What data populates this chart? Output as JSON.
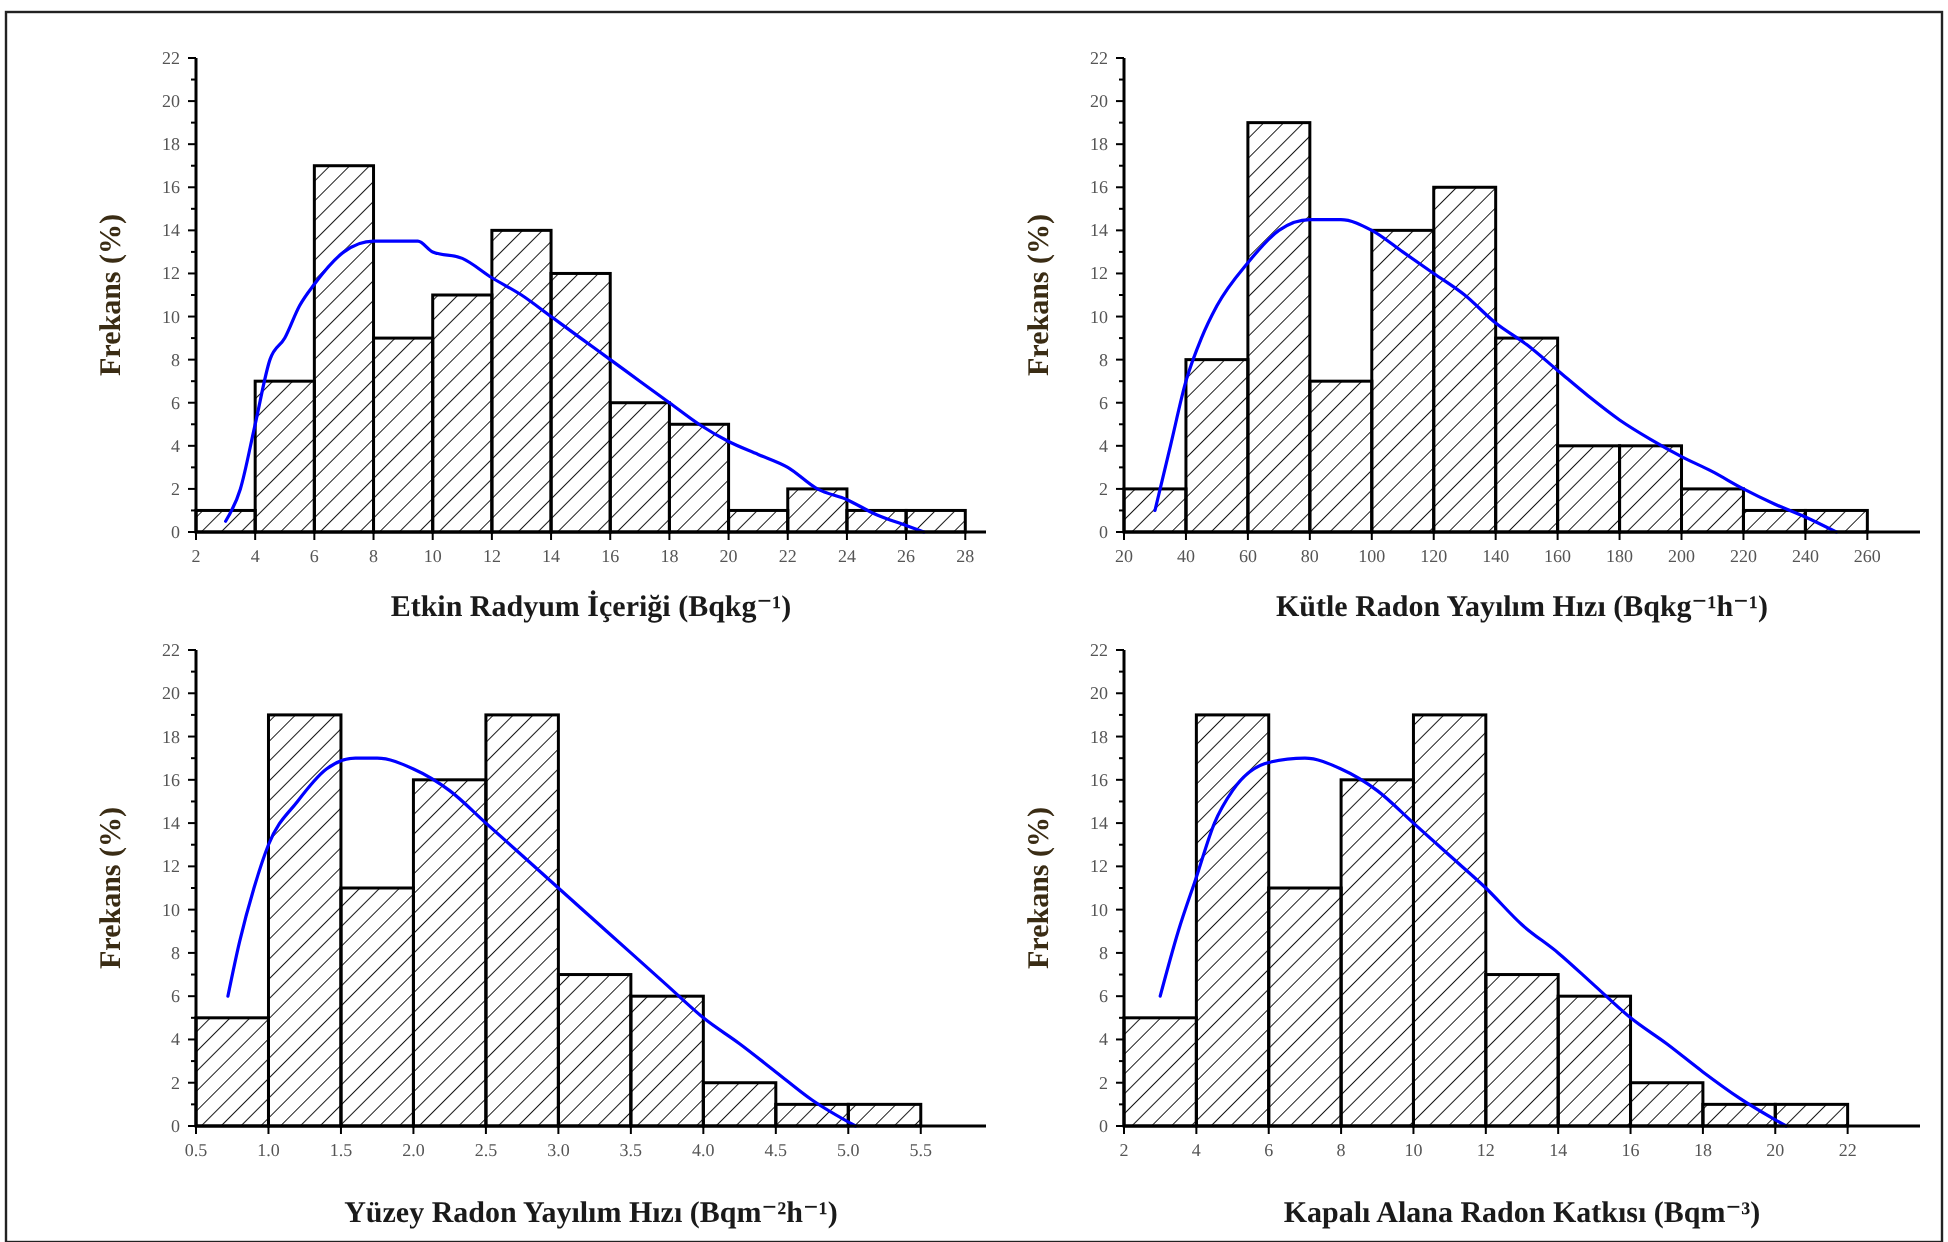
{
  "chart_data": [
    {
      "type": "histogram",
      "xlabel": "Etkin Radyum İçeriği (Bqkg⁻¹)",
      "ylabel": "Frekans (%)",
      "xlim": [
        2,
        28.7
      ],
      "ylim": [
        0,
        22
      ],
      "xticks": [
        2,
        4,
        6,
        8,
        10,
        12,
        14,
        16,
        18,
        20,
        22,
        24,
        26,
        28
      ],
      "yticks": [
        0,
        {
          "value": 1,
          "label": null
        },
        2,
        {
          "value": 3,
          "label": null
        },
        4,
        {
          "value": 5,
          "label": null
        },
        6,
        {
          "value": 7,
          "label": null
        },
        8,
        {
          "value": 9,
          "label": null
        },
        10,
        {
          "value": 11,
          "label": null
        },
        12,
        {
          "value": 13,
          "label": null
        },
        14,
        {
          "value": 15,
          "label": null
        },
        16,
        {
          "value": 17,
          "label": null
        },
        18,
        {
          "value": 19,
          "label": null
        },
        20,
        {
          "value": 21,
          "label": null
        },
        22
      ],
      "series": [
        {
          "type": "histogram",
          "color": "#000000",
          "bins": [
            2,
            4,
            6,
            8,
            10,
            12,
            14,
            16,
            18,
            20,
            22,
            24,
            26,
            28
          ],
          "values": [
            1,
            7,
            17,
            9,
            11,
            14,
            12,
            6,
            5,
            1,
            2,
            1,
            1
          ]
        },
        {
          "type": "line",
          "color": "#0000ff",
          "x": [
            3,
            3.5,
            4,
            4.5,
            5,
            5.5,
            6,
            7,
            8,
            9,
            9.5,
            10,
            11,
            12,
            13,
            14,
            15,
            16,
            17,
            18,
            19,
            20,
            21,
            22,
            23,
            24,
            25,
            26,
            26.6
          ],
          "values": [
            0.5,
            2,
            5,
            8,
            9,
            10.5,
            11.5,
            13,
            13.5,
            13.5,
            13.5,
            13,
            12.7,
            11.8,
            11,
            10,
            9,
            8,
            7,
            6,
            5,
            4.2,
            3.6,
            3,
            2,
            1.5,
            0.8,
            0.3,
            0
          ]
        }
      ]
    },
    {
      "type": "histogram",
      "xlabel": "Kütle Radon Yayılım Hızı (Bqkg⁻¹h⁻¹)",
      "ylabel": "Frekans (%)",
      "xlim": [
        20,
        277
      ],
      "ylim": [
        0,
        22
      ],
      "xticks": [
        20,
        40,
        60,
        80,
        100,
        120,
        140,
        160,
        180,
        200,
        220,
        240,
        260
      ],
      "yticks": [
        0,
        {
          "value": 1,
          "label": null
        },
        2,
        {
          "value": 3,
          "label": null
        },
        4,
        {
          "value": 5,
          "label": null
        },
        6,
        {
          "value": 7,
          "label": null
        },
        8,
        {
          "value": 9,
          "label": null
        },
        10,
        {
          "value": 11,
          "label": null
        },
        12,
        {
          "value": 13,
          "label": null
        },
        14,
        {
          "value": 15,
          "label": null
        },
        16,
        {
          "value": 17,
          "label": null
        },
        18,
        {
          "value": 19,
          "label": null
        },
        20,
        {
          "value": 21,
          "label": null
        },
        22
      ],
      "series": [
        {
          "type": "histogram",
          "color": "#000000",
          "bins": [
            20,
            40,
            60,
            80,
            100,
            120,
            140,
            160,
            180,
            200,
            220,
            240,
            260
          ],
          "values": [
            2,
            8,
            19,
            7,
            14,
            16,
            9,
            4,
            4,
            2,
            1,
            1
          ]
        },
        {
          "type": "line",
          "color": "#0000ff",
          "x": [
            30,
            35,
            40,
            45,
            50,
            60,
            70,
            80,
            90,
            100,
            110,
            120,
            130,
            140,
            150,
            160,
            170,
            180,
            190,
            200,
            210,
            220,
            230,
            240,
            250
          ],
          "values": [
            1,
            4,
            7,
            9,
            10.5,
            12.5,
            14,
            14.5,
            14.5,
            14,
            13,
            12,
            11,
            9.7,
            8.7,
            7.5,
            6.3,
            5.2,
            4.3,
            3.5,
            2.8,
            2,
            1.3,
            0.7,
            0
          ]
        }
      ]
    },
    {
      "type": "histogram",
      "xlabel": "Yüzey Radon Yayılım Hızı (Bqm⁻²h⁻¹)",
      "ylabel": "Frekans (%)",
      "xlim": [
        0.5,
        5.95
      ],
      "ylim": [
        0,
        22
      ],
      "xticks": [
        0.5,
        {
          "value": 1,
          "label": "1.0"
        },
        1.5,
        {
          "value": 2,
          "label": "2.0"
        },
        2.5,
        {
          "value": 3,
          "label": "3.0"
        },
        3.5,
        {
          "value": 4,
          "label": "4.0"
        },
        4.5,
        {
          "value": 5,
          "label": "5.0"
        },
        5.5
      ],
      "yticks": [
        0,
        {
          "value": 1,
          "label": null
        },
        2,
        {
          "value": 3,
          "label": null
        },
        4,
        {
          "value": 5,
          "label": null
        },
        6,
        {
          "value": 7,
          "label": null
        },
        8,
        {
          "value": 9,
          "label": null
        },
        10,
        {
          "value": 11,
          "label": null
        },
        12,
        {
          "value": 13,
          "label": null
        },
        14,
        {
          "value": 15,
          "label": null
        },
        16,
        {
          "value": 17,
          "label": null
        },
        18,
        {
          "value": 19,
          "label": null
        },
        20,
        {
          "value": 21,
          "label": null
        },
        22
      ],
      "series": [
        {
          "type": "histogram",
          "color": "#000000",
          "bins": [
            0.5,
            1,
            1.5,
            2,
            2.5,
            3,
            3.5,
            4,
            4.5,
            5,
            5.5
          ],
          "values": [
            5,
            19,
            11,
            16,
            19,
            7,
            6,
            2,
            1,
            1
          ]
        },
        {
          "type": "line",
          "color": "#0000ff",
          "x": [
            0.72,
            0.8,
            0.9,
            1,
            1.2,
            1.4,
            1.6,
            1.75,
            2,
            2.25,
            2.5,
            2.75,
            3,
            3.25,
            3.5,
            3.75,
            4,
            4.25,
            4.5,
            4.75,
            5.05
          ],
          "values": [
            6,
            8.5,
            11,
            13,
            15,
            16.5,
            17,
            17,
            16.5,
            15.5,
            14,
            12.5,
            11,
            9.5,
            8,
            6.5,
            5,
            3.8,
            2.5,
            1.2,
            0
          ]
        }
      ]
    },
    {
      "type": "histogram",
      "xlabel": "Kapalı Alana Radon Katkısı (Bqm⁻³)",
      "ylabel": "Frekans (%)",
      "xlim": [
        2,
        24
      ],
      "ylim": [
        0,
        22
      ],
      "xticks": [
        2,
        4,
        6,
        8,
        10,
        12,
        14,
        16,
        18,
        20,
        22
      ],
      "yticks": [
        0,
        {
          "value": 1,
          "label": null
        },
        2,
        {
          "value": 3,
          "label": null
        },
        4,
        {
          "value": 5,
          "label": null
        },
        6,
        {
          "value": 7,
          "label": null
        },
        8,
        {
          "value": 9,
          "label": null
        },
        10,
        {
          "value": 11,
          "label": null
        },
        12,
        {
          "value": 13,
          "label": null
        },
        14,
        {
          "value": 15,
          "label": null
        },
        16,
        {
          "value": 17,
          "label": null
        },
        18,
        {
          "value": 19,
          "label": null
        },
        20,
        {
          "value": 21,
          "label": null
        },
        22
      ],
      "series": [
        {
          "type": "histogram",
          "color": "#000000",
          "bins": [
            2,
            4,
            6,
            8,
            10,
            12,
            14,
            16,
            18,
            20,
            22
          ],
          "values": [
            5,
            19,
            11,
            16,
            19,
            7,
            6,
            2,
            1,
            1
          ]
        },
        {
          "type": "line",
          "color": "#0000ff",
          "x": [
            3,
            3.5,
            4,
            4.5,
            5,
            6,
            7,
            8,
            9,
            10,
            11,
            12,
            13,
            14,
            15,
            16,
            17,
            18,
            19,
            20.3
          ],
          "values": [
            6,
            9,
            11.5,
            14,
            15.5,
            16.8,
            17,
            16.5,
            15.5,
            14,
            12.5,
            11,
            9.3,
            8,
            6.5,
            5,
            3.8,
            2.5,
            1.3,
            0
          ]
        }
      ]
    }
  ]
}
